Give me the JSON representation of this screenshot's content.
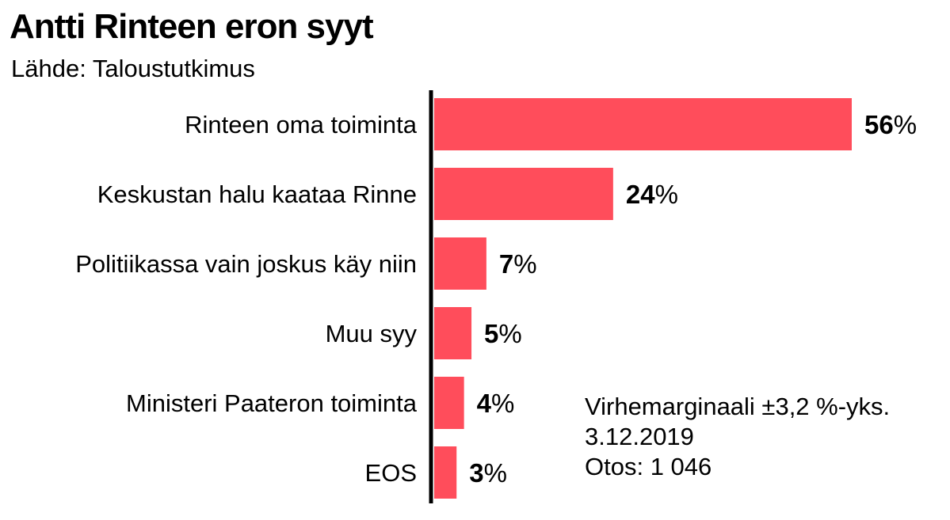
{
  "title": "Antti Rinteen eron syyt",
  "subtitle": "Lähde: Taloustutkimus",
  "chart_data": {
    "type": "bar",
    "orientation": "horizontal",
    "title": "Antti Rinteen eron syyt",
    "subtitle": "Lähde: Taloustutkimus",
    "categories": [
      "Rinteen oma toiminta",
      "Keskustan halu kaataa Rinne",
      "Politiikassa vain joskus käy niin",
      "Muu syy",
      "Ministeri Paateron toiminta",
      "EOS"
    ],
    "values": [
      56,
      24,
      7,
      5,
      4,
      3
    ],
    "value_labels": [
      "56",
      "24",
      "7",
      "5",
      "4",
      "3"
    ],
    "unit": "%",
    "xlim": [
      0,
      56
    ],
    "bar_color": "#ff4d5b",
    "grid": false,
    "legend": "none"
  },
  "notes": {
    "margin": "Virhemarginaali ±3,2 %-yks.",
    "date": "3.12.2019",
    "sample": "Otos: 1 046"
  }
}
